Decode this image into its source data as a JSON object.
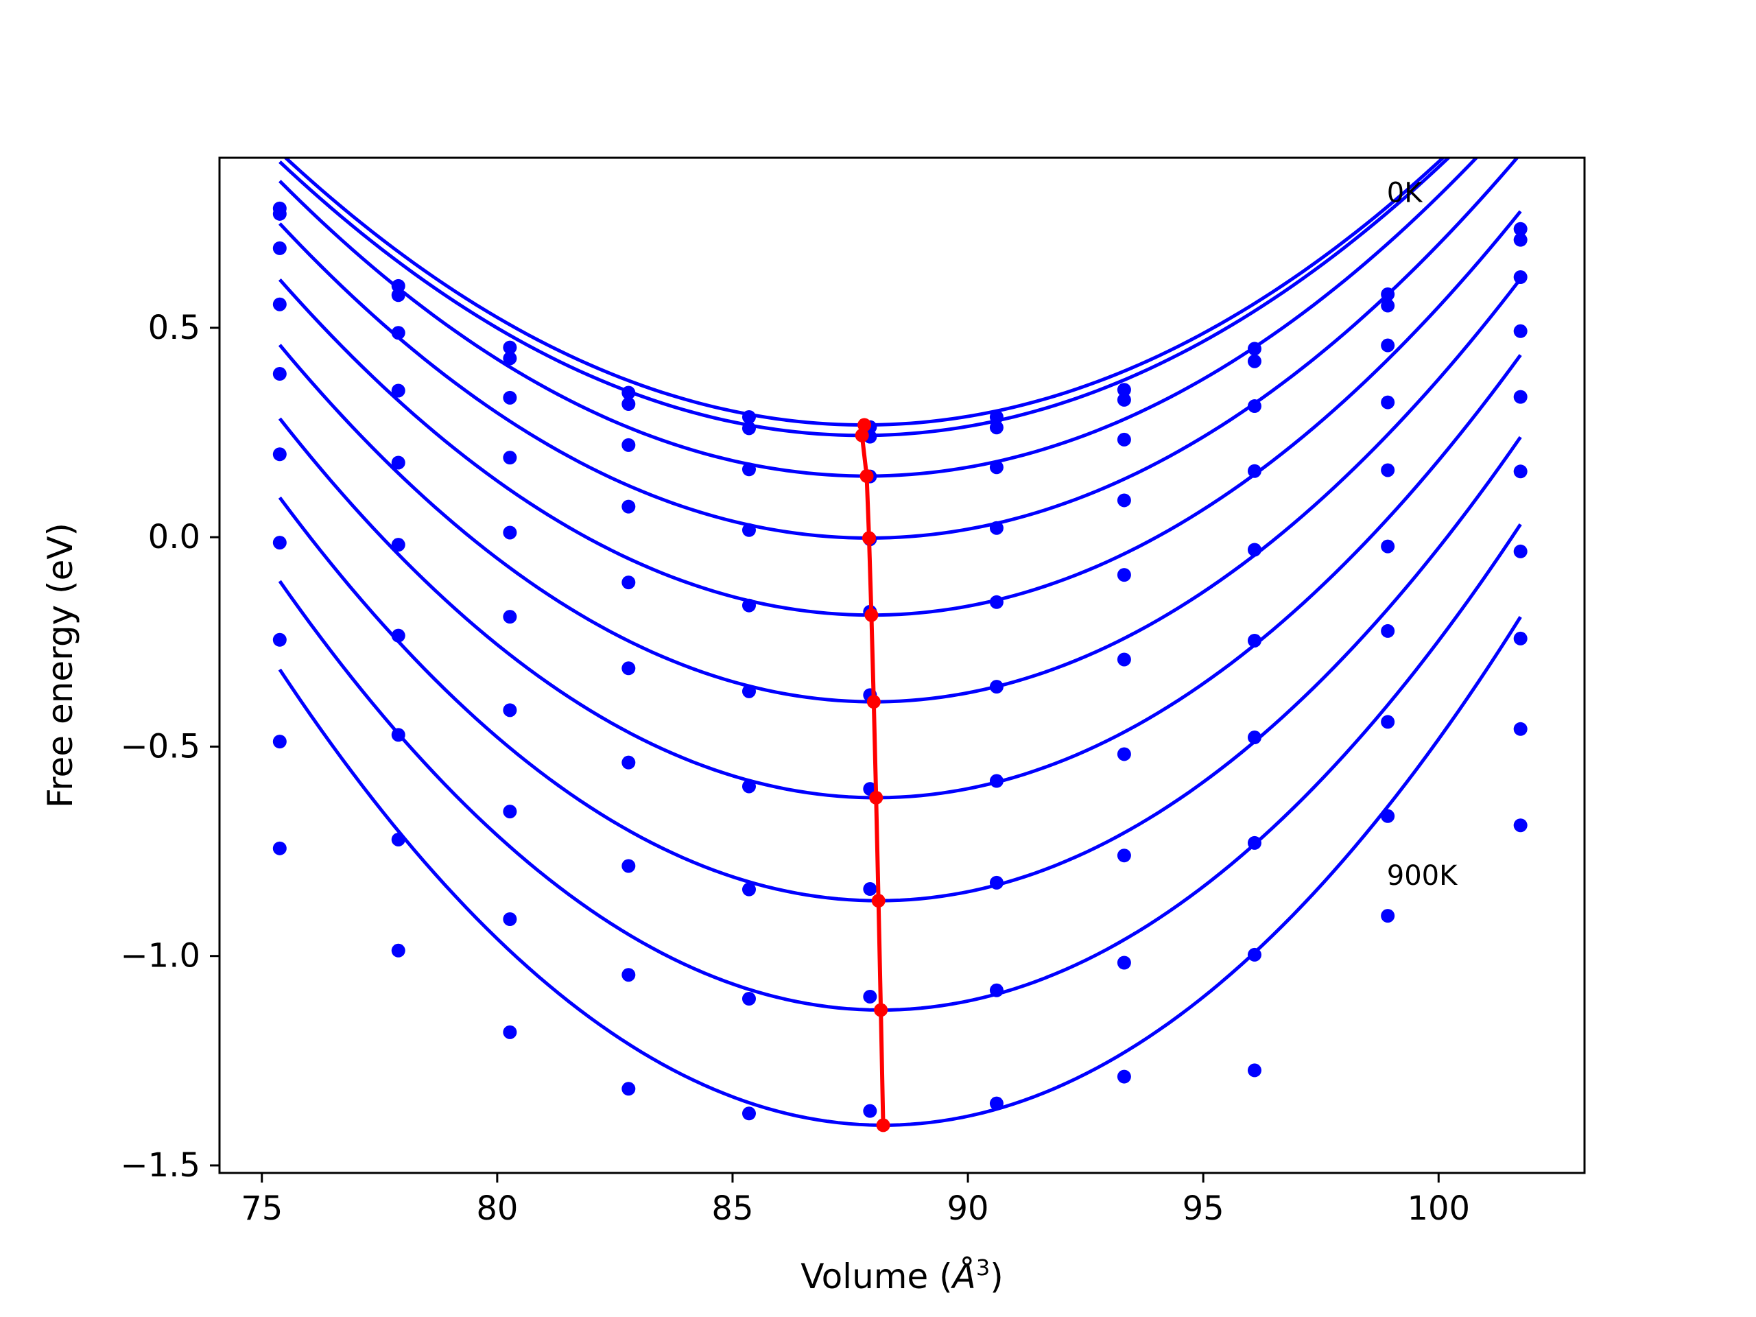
{
  "chart_data": {
    "type": "line",
    "title": "",
    "xlabel": "Volume (",
    "xlabel_unit": "Å",
    "xlabel_exp": "3",
    "xlabel_close": ")",
    "ylabel": "Free energy (eV)",
    "xlim": [
      74.1,
      103.1
    ],
    "ylim": [
      -1.518,
      0.906
    ],
    "xticks": [
      75,
      80,
      85,
      90,
      95,
      100
    ],
    "xtick_labels": [
      "75",
      "80",
      "85",
      "90",
      "95",
      "100"
    ],
    "yticks": [
      -1.5,
      -1.0,
      -0.5,
      0.0,
      0.5
    ],
    "ytick_labels": [
      "−1.5",
      "−1.0",
      "−0.5",
      "0.0",
      "0.5"
    ],
    "grid": false,
    "annotations": [
      {
        "text": "0K",
        "x": 98.9,
        "y": 0.8
      },
      {
        "text": "900K",
        "x": 98.9,
        "y": -0.83
      }
    ],
    "volumes": [
      75.38,
      77.9,
      80.27,
      82.79,
      85.35,
      87.92,
      90.61,
      93.32,
      96.09,
      98.92,
      101.74
    ],
    "series": [
      {
        "values": [
          0.785,
          0.6,
          0.453,
          0.345,
          0.287,
          0.263,
          0.287,
          0.352,
          0.45,
          0.58,
          0.736
        ],
        "fit": {
          "a": 0.00422,
          "v0": 87.8,
          "e0": 0.268
        }
      },
      {
        "values": [
          0.772,
          0.578,
          0.427,
          0.318,
          0.26,
          0.24,
          0.262,
          0.328,
          0.42,
          0.553,
          0.71
        ],
        "fit": {
          "a": 0.00427,
          "v0": 87.75,
          "e0": 0.243
        }
      },
      {
        "values": [
          0.69,
          0.488,
          0.333,
          0.22,
          0.162,
          0.145,
          0.167,
          0.233,
          0.313,
          0.458,
          0.621
        ],
        "fit": {
          "a": 0.00453,
          "v0": 87.85,
          "e0": 0.146
        }
      },
      {
        "values": [
          0.556,
          0.35,
          0.19,
          0.073,
          0.017,
          -0.005,
          0.022,
          0.088,
          0.158,
          0.322,
          0.492
        ],
        "fit": {
          "a": 0.00479,
          "v0": 87.9,
          "e0": -0.002
        }
      },
      {
        "values": [
          0.39,
          0.178,
          0.011,
          -0.108,
          -0.163,
          -0.178,
          -0.155,
          -0.09,
          -0.03,
          0.16,
          0.335
        ],
        "fit": {
          "a": 0.00507,
          "v0": 87.95,
          "e0": -0.186
        }
      },
      {
        "values": [
          0.198,
          -0.018,
          -0.19,
          -0.313,
          -0.368,
          -0.377,
          -0.357,
          -0.292,
          -0.247,
          -0.022,
          0.157
        ],
        "fit": {
          "a": 0.00535,
          "v0": 88.0,
          "e0": -0.393
        }
      },
      {
        "values": [
          -0.013,
          -0.235,
          -0.413,
          -0.538,
          -0.595,
          -0.601,
          -0.582,
          -0.518,
          -0.478,
          -0.224,
          -0.034
        ],
        "fit": {
          "a": 0.00564,
          "v0": 88.05,
          "e0": -0.622
        }
      },
      {
        "values": [
          -0.245,
          -0.472,
          -0.655,
          -0.785,
          -0.841,
          -0.84,
          -0.825,
          -0.76,
          -0.73,
          -0.441,
          -0.242
        ],
        "fit": {
          "a": 0.00595,
          "v0": 88.1,
          "e0": -0.868
        }
      },
      {
        "values": [
          -0.488,
          -0.722,
          -0.912,
          -1.045,
          -1.102,
          -1.097,
          -1.082,
          -1.016,
          -0.997,
          -0.666,
          -0.458
        ],
        "fit": {
          "a": 0.00628,
          "v0": 88.15,
          "e0": -1.129
        }
      },
      {
        "values": [
          -0.743,
          -0.987,
          -1.182,
          -1.317,
          -1.376,
          -1.37,
          -1.352,
          -1.288,
          -1.273,
          -0.904,
          -0.688
        ],
        "fit": {
          "a": 0.00662,
          "v0": 88.2,
          "e0": -1.404
        }
      }
    ],
    "minima_line": {
      "x": [
        87.8,
        87.75,
        87.85,
        87.9,
        87.95,
        88.0,
        88.05,
        88.1,
        88.15,
        88.2
      ],
      "y": [
        0.268,
        0.243,
        0.146,
        -0.002,
        -0.186,
        -0.393,
        -0.622,
        -0.868,
        -1.129,
        -1.404
      ]
    },
    "colors": {
      "points": "#0000ff",
      "fits": "#0000ff",
      "minima": "#ff0000",
      "axes": "#000000"
    }
  }
}
